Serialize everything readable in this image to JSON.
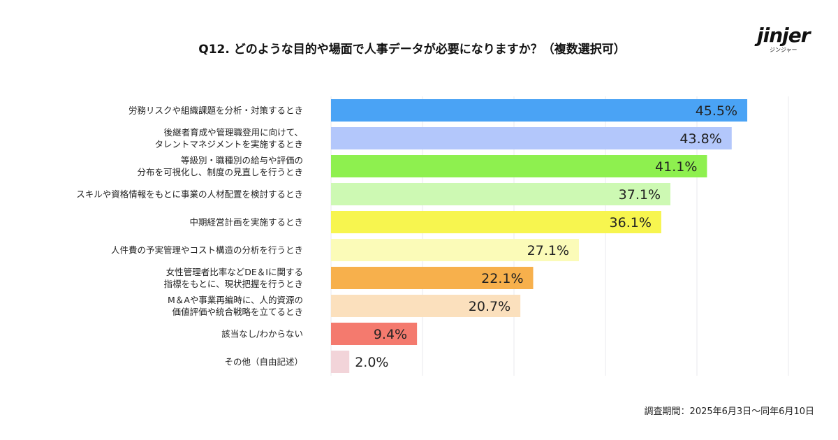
{
  "chart_data": {
    "type": "bar",
    "orientation": "horizontal",
    "title": "Q12. どのような目的や場面で人事データが必要になりますか？（複数選択可）",
    "categories": [
      "労務リスクや組織課題を分析・対策するとき",
      "後継者育成や管理職登用に向けて、\nタレントマネジメントを実施するとき",
      "等級別・職種別の給与や評価の\n分布を可視化し、制度の見直しを行うとき",
      "スキルや資格情報をもとに事業の人材配置を検討するとき",
      "中期経営計画を実施するとき",
      "人件費の予実管理やコスト構造の分析を行うとき",
      "女性管理者比率などDE＆Iに関する\n指標をもとに、現状把握を行うとき",
      "M＆Aや事業再編時に、人的資源の\n価値評価や統合戦略を立てるとき",
      "該当なし/わからない",
      "その他（自由記述）"
    ],
    "values": [
      45.5,
      43.8,
      41.1,
      37.1,
      36.1,
      27.1,
      22.1,
      20.7,
      9.4,
      2.0
    ],
    "value_labels": [
      "45.5%",
      "43.8%",
      "41.1%",
      "37.1%",
      "36.1%",
      "27.1%",
      "22.1%",
      "20.7%",
      "9.4%",
      "2.0%"
    ],
    "colors": [
      "#4aa3f5",
      "#b3c7fb",
      "#8ef04f",
      "#cdf9b3",
      "#f7f54f",
      "#fbfbb8",
      "#f7b04c",
      "#fbe0bd",
      "#f47a6e",
      "#f2d4d9"
    ],
    "xlim": [
      0,
      50
    ],
    "xticks": [
      0,
      10,
      20,
      30,
      40,
      50
    ],
    "grid": true
  },
  "logo": {
    "name": "jinjer",
    "kana": "ジンジャー"
  },
  "footnote": "調査期間：2025年6月3日～同年6月10日"
}
